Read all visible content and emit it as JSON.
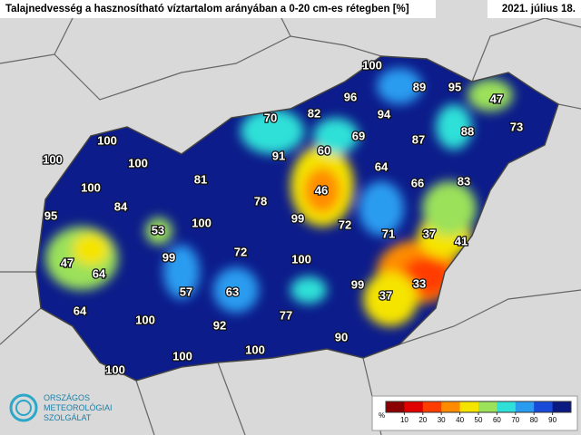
{
  "header": {
    "title": "Talajnedvesség a hasznosítható víztartalom arányában a 0-20 cm-es rétegben [%]",
    "date": "2021. július 18."
  },
  "stations": [
    100,
    89,
    95,
    47,
    73,
    96,
    82,
    70,
    94,
    88,
    69,
    87,
    60,
    91,
    64,
    100,
    100,
    100,
    81,
    66,
    83,
    46,
    100,
    78,
    95,
    84,
    99,
    72,
    100,
    53,
    71,
    37,
    41,
    72,
    47,
    99,
    100,
    64,
    99,
    33,
    57,
    63,
    37,
    64,
    77,
    100,
    92,
    90,
    100,
    100,
    100
  ],
  "colorbar": {
    "label": "%",
    "lim": [
      0,
      100
    ],
    "ticks": [
      10,
      20,
      30,
      40,
      50,
      60,
      70,
      80,
      90
    ],
    "colors": [
      "#8b0000",
      "#e00000",
      "#ff3c00",
      "#ff8c00",
      "#f5e400",
      "#9be15a",
      "#2ee0d8",
      "#2a9cf0",
      "#1a4ad8",
      "#0a1a80"
    ]
  },
  "logo": {
    "line1": "ORSZÁGOS",
    "line2": "METEOROLÓGIAI",
    "line3": "SZOLGÁLAT"
  }
}
